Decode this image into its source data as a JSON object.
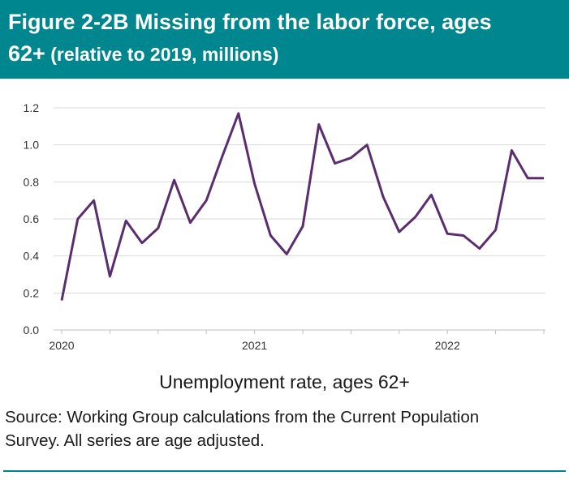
{
  "header": {
    "title_main": "Figure 2-2B Missing from the labor force, ages",
    "title_line2": "62+",
    "title_sub": " (relative to 2019, millions)"
  },
  "colors": {
    "header_bg": "#00868e",
    "line": "#5a2d6e",
    "grid": "#d9d9d9"
  },
  "chart_data": {
    "type": "line",
    "title": "Figure 2-2B Missing from the labor force, ages 62+ (relative to 2019, millions)",
    "xlabel": "Unemployment rate, ages 62+",
    "ylabel": "",
    "ylim": [
      0,
      1.2
    ],
    "yticks": [
      "0.0",
      "0.2",
      "0.4",
      "0.6",
      "0.8",
      "1.0",
      "1.2"
    ],
    "xticks": [
      "2020",
      "2021",
      "2022"
    ],
    "grid": true,
    "series": [
      {
        "x": [
          "2020-01",
          "2020-02",
          "2020-03",
          "2020-04",
          "2020-05",
          "2020-06",
          "2020-07",
          "2020-08",
          "2020-09",
          "2020-10",
          "2020-11",
          "2020-12",
          "2021-01",
          "2021-02",
          "2021-03",
          "2021-04",
          "2021-05",
          "2021-06",
          "2021-07",
          "2021-08",
          "2021-09",
          "2021-10",
          "2021-11",
          "2021-12",
          "2022-01",
          "2022-02",
          "2022-03",
          "2022-04",
          "2022-05",
          "2022-06",
          "2022-07"
        ],
        "values": [
          0.16,
          0.6,
          0.7,
          0.29,
          0.59,
          0.47,
          0.55,
          0.81,
          0.58,
          0.7,
          0.94,
          1.17,
          0.79,
          0.51,
          0.41,
          0.56,
          1.11,
          0.9,
          0.93,
          1.0,
          0.72,
          0.53,
          0.61,
          0.73,
          0.52,
          0.51,
          0.44,
          0.54,
          0.97,
          0.82,
          0.82
        ]
      }
    ]
  },
  "source": "Source: Working Group calculations from the Current Population Survey. All series are age adjusted."
}
